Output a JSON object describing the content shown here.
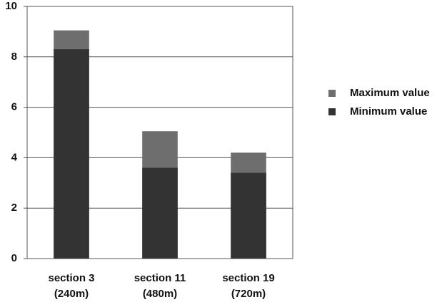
{
  "chart_data": {
    "type": "bar",
    "overlap": true,
    "categories": [
      "section 3\n(240m)",
      "section 11\n(480m)",
      "section 19\n(720m)"
    ],
    "series": [
      {
        "name": "Maximum value",
        "color": "#6e6e6e",
        "values": [
          9.05,
          5.05,
          4.2
        ]
      },
      {
        "name": "Minimum value",
        "color": "#333333",
        "values": [
          8.3,
          3.6,
          3.4
        ]
      }
    ],
    "ylim": [
      0,
      10
    ],
    "yticks": [
      0,
      2,
      4,
      6,
      8,
      10
    ],
    "grid": true,
    "legend": "right"
  }
}
